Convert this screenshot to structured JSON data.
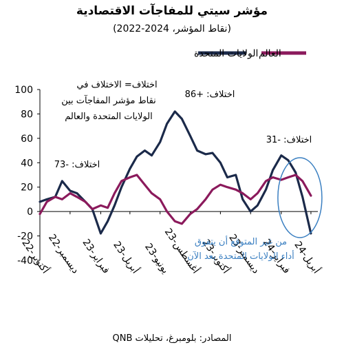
{
  "title": "مؤشر سيتي للمفاجآت الاقتصادية",
  "subtitle": "(نقاط المؤشر، 2024-2022)",
  "source": "المصادر: بلومبرغ، تحليلات QNB",
  "colors": {
    "us": "#1b2a4a",
    "world": "#8b1a5c",
    "ellipse": "#3a7fc1",
    "annotation_blue": "#3a7fc1"
  },
  "legend": {
    "us": "الولايات المتحدة",
    "world": "العالم"
  },
  "annotations": {
    "diff_definition": [
      "اختلاف= الاختلاف في",
      "نقاط مؤشر المفاجآت بين",
      "الولايات المتحدة والعالم"
    ],
    "diff1": "اختلاف: -73",
    "diff2": "اختلاف: +86",
    "diff3": "اختلاف: -31",
    "recent": [
      "من غير المتوقع أن يتفوق",
      "أداء الولايات المتحدة بعد الآن"
    ]
  },
  "chart_data": {
    "type": "line",
    "title": "مؤشر سيتي للمفاجآت الاقتصادية",
    "subtitle": "(نقاط المؤشر، 2024-2022)",
    "xlabel": "",
    "ylabel": "",
    "ylim": [
      -40,
      100
    ],
    "yticks": [
      -40,
      -20,
      0,
      20,
      40,
      60,
      80,
      100
    ],
    "x_tick_labels": [
      "أكتوبر-22",
      "ديسمبر-22",
      "فبراير-23",
      "أبريل-23",
      "يونيو-23",
      "أغسطس-23",
      "أكتوبر-23",
      "ديسمبر-23",
      "فبراير-24",
      "أبريل-24"
    ],
    "x": [
      "2022-10-01",
      "2022-10-15",
      "2022-11-01",
      "2022-11-15",
      "2022-12-01",
      "2022-12-15",
      "2023-01-01",
      "2023-01-15",
      "2023-02-01",
      "2023-02-15",
      "2023-03-01",
      "2023-03-15",
      "2023-04-01",
      "2023-04-15",
      "2023-05-01",
      "2023-05-15",
      "2023-06-01",
      "2023-06-15",
      "2023-07-01",
      "2023-07-15",
      "2023-08-01",
      "2023-08-15",
      "2023-09-01",
      "2023-09-15",
      "2023-10-01",
      "2023-10-15",
      "2023-11-01",
      "2023-11-15",
      "2023-12-01",
      "2023-12-15",
      "2024-01-01",
      "2024-01-15",
      "2024-02-01",
      "2024-02-15",
      "2024-03-01",
      "2024-03-15",
      "2024-04-01"
    ],
    "series": [
      {
        "name": "الولايات المتحدة",
        "values": [
          8,
          10,
          12,
          25,
          17,
          15,
          8,
          2,
          -18,
          -8,
          5,
          20,
          35,
          45,
          50,
          46,
          57,
          72,
          82,
          76,
          62,
          50,
          47,
          48,
          40,
          28,
          30,
          10,
          0,
          5,
          18,
          34,
          46,
          42,
          32,
          12,
          -18
        ]
      },
      {
        "name": "العالم",
        "values": [
          -2,
          8,
          12,
          10,
          15,
          12,
          8,
          2,
          5,
          3,
          15,
          25,
          28,
          30,
          22,
          15,
          10,
          0,
          -8,
          -10,
          -2,
          2,
          10,
          18,
          22,
          20,
          18,
          15,
          10,
          15,
          25,
          28,
          26,
          28,
          30,
          25,
          13
        ]
      }
    ],
    "grid": false,
    "legend_position": "top"
  }
}
